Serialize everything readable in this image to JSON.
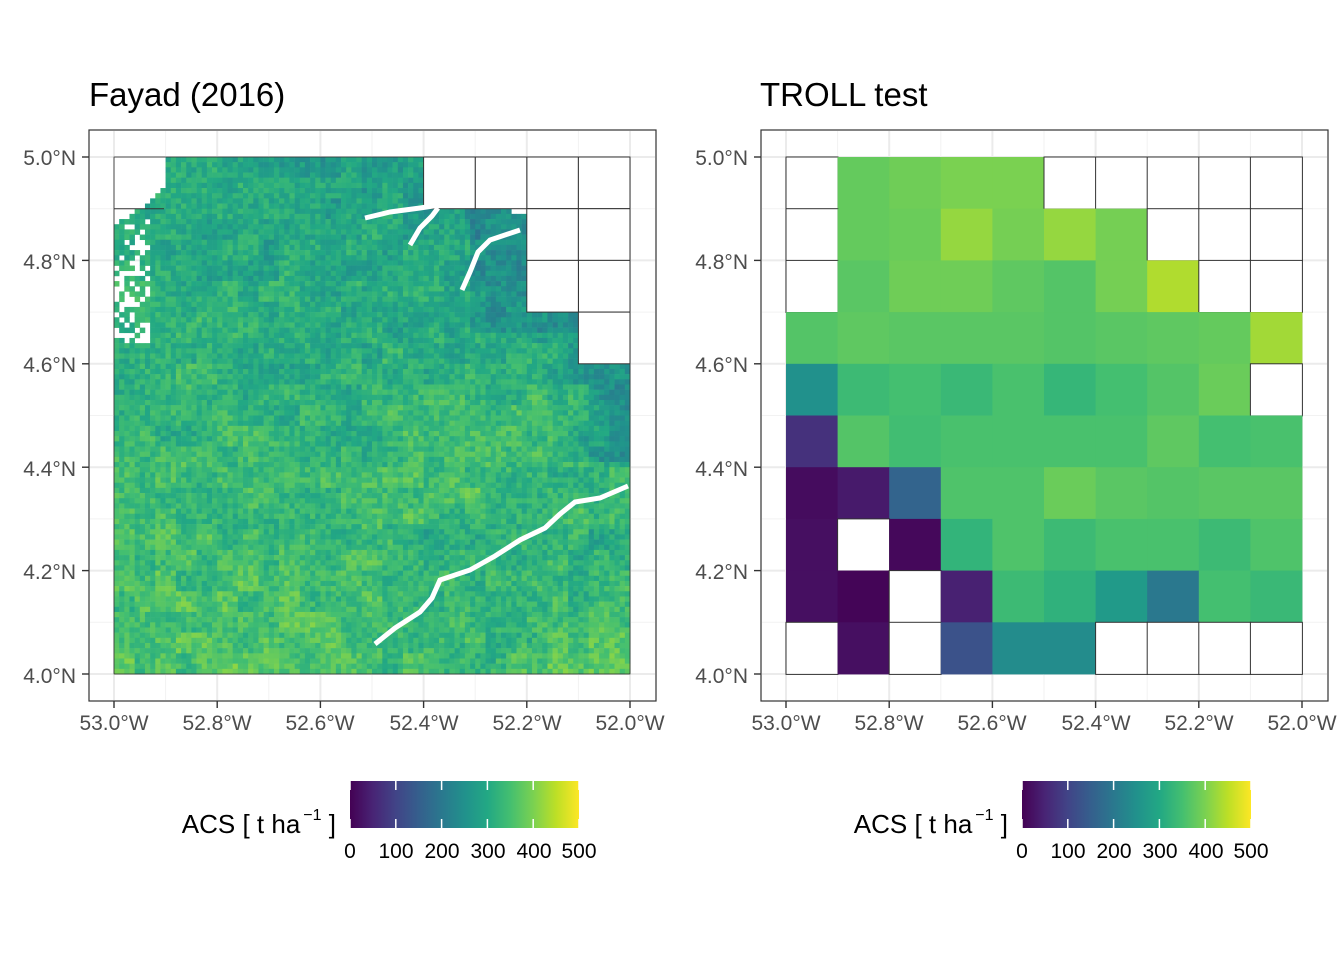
{
  "chart_data": [
    {
      "type": "heatmap",
      "title": "Fayad (2016)",
      "x_ticks": [
        "53.0°W",
        "52.8°W",
        "52.6°W",
        "52.4°W",
        "52.2°W",
        "52.0°W"
      ],
      "y_ticks": [
        "4.0°N",
        "4.2°N",
        "4.4°N",
        "4.6°N",
        "4.8°N",
        "5.0°N"
      ],
      "xlim": [
        -53.0,
        -52.0
      ],
      "ylim": [
        4.0,
        5.0
      ],
      "grid_overlay": "0.1 degree cells, drawn over the north-east corner",
      "texture_description_values": "fine-resolution raster, mostly 250-400 t/ha, lower (~200-250) along the south-east river band, white gaps are missing data and rivers",
      "legend": {
        "title_prefix": "ACS [ t ha",
        "title_superscript": "−1",
        "title_suffix": " ]",
        "ticks": [
          "0",
          "100",
          "200",
          "300",
          "400",
          "500"
        ],
        "colormap": "viridis",
        "range": [
          0,
          500
        ]
      }
    },
    {
      "type": "heatmap",
      "title": "TROLL test",
      "x_ticks": [
        "53.0°W",
        "52.8°W",
        "52.6°W",
        "52.4°W",
        "52.2°W",
        "52.0°W"
      ],
      "y_ticks": [
        "4.0°N",
        "4.2°N",
        "4.4°N",
        "4.6°N",
        "4.8°N",
        "5.0°N"
      ],
      "xlim": [
        -53.0,
        -52.0
      ],
      "ylim": [
        4.0,
        5.0
      ],
      "cell_size_deg": 0.1,
      "rows_from_north": [
        [
          null,
          380,
          390,
          400,
          400,
          null,
          null,
          null,
          null,
          null
        ],
        [
          null,
          380,
          385,
          420,
          395,
          420,
          395,
          null,
          null,
          null
        ],
        [
          null,
          370,
          390,
          390,
          375,
          365,
          395,
          440,
          null,
          null
        ],
        [
          365,
          375,
          370,
          370,
          370,
          365,
          370,
          375,
          380,
          430
        ],
        [
          250,
          340,
          350,
          335,
          355,
          330,
          350,
          365,
          385,
          null
        ],
        [
          70,
          365,
          345,
          355,
          355,
          355,
          355,
          375,
          350,
          355
        ],
        [
          15,
          35,
          160,
          360,
          360,
          385,
          370,
          365,
          370,
          370
        ],
        [
          20,
          null,
          10,
          325,
          360,
          340,
          355,
          355,
          340,
          360
        ],
        [
          20,
          5,
          null,
          45,
          340,
          320,
          270,
          200,
          350,
          335
        ],
        [
          null,
          20,
          null,
          125,
          240,
          240,
          null,
          null,
          null,
          null
        ]
      ],
      "legend": {
        "title_prefix": "ACS [ t ha",
        "title_superscript": "−1",
        "title_suffix": " ]",
        "ticks": [
          "0",
          "100",
          "200",
          "300",
          "400",
          "500"
        ],
        "colormap": "viridis",
        "range": [
          0,
          500
        ]
      }
    }
  ]
}
